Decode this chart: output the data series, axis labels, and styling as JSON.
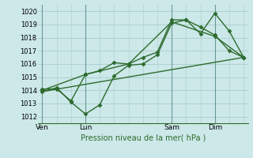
{
  "bg_color": "#cce8e8",
  "grid_color": "#aacccc",
  "line_color": "#2d6b2d",
  "marker_color": "#2d6b2d",
  "xlabel": "Pression niveau de la mer( hPa )",
  "ylim": [
    1011.5,
    1020.5
  ],
  "yticks": [
    1012,
    1013,
    1014,
    1015,
    1016,
    1017,
    1018,
    1019,
    1020
  ],
  "day_labels": [
    "Ven",
    "Lun",
    "Sam",
    "Dim"
  ],
  "day_positions": [
    0.0,
    3.0,
    9.0,
    12.0
  ],
  "xlim": [
    -0.3,
    14.3
  ],
  "total_points": 15,
  "vline_positions": [
    0.0,
    3.0,
    9.0,
    12.0
  ],
  "series": [
    {
      "x": [
        0,
        1,
        2,
        3,
        4,
        5,
        6,
        7,
        8,
        9,
        10,
        11,
        12,
        13,
        14
      ],
      "y": [
        1013.9,
        1014.2,
        1013.1,
        1012.2,
        1012.9,
        1015.1,
        1015.9,
        1016.0,
        1016.7,
        1019.1,
        1019.35,
        1018.3,
        1019.85,
        1018.5,
        1016.5
      ],
      "marker": "D",
      "markersize": 2.5,
      "linewidth": 1.0
    },
    {
      "x": [
        0,
        1,
        2,
        3,
        4,
        5,
        6,
        7,
        8,
        9,
        10,
        11,
        12,
        13,
        14
      ],
      "y": [
        1014.1,
        1014.1,
        1013.2,
        1015.2,
        1015.5,
        1016.1,
        1016.0,
        1016.5,
        1016.9,
        1019.35,
        1019.35,
        1018.8,
        1018.2,
        1017.0,
        1016.5
      ],
      "marker": "D",
      "markersize": 2.5,
      "linewidth": 1.0
    },
    {
      "x": [
        0,
        3,
        6,
        9,
        12,
        14
      ],
      "y": [
        1014.0,
        1015.2,
        1016.0,
        1019.2,
        1018.1,
        1016.5
      ],
      "marker": "D",
      "markersize": 2.5,
      "linewidth": 1.0
    },
    {
      "x": [
        0,
        14
      ],
      "y": [
        1013.9,
        1016.5
      ],
      "marker": null,
      "markersize": 0,
      "linewidth": 1.0
    }
  ]
}
